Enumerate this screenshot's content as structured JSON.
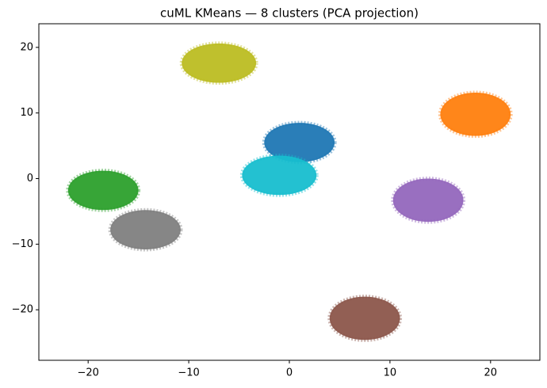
{
  "chart_data": {
    "type": "cluster_scatter",
    "title": "cuML KMeans — 8 clusters (PCA projection)",
    "xlim": [
      -24.9,
      24.9
    ],
    "ylim": [
      -27.7,
      23.6
    ],
    "xticks": [
      {
        "value": -20,
        "label": "−20"
      },
      {
        "value": -10,
        "label": "−10"
      },
      0,
      10,
      20
    ],
    "yticks": [
      {
        "value": -20,
        "label": "−20"
      },
      {
        "value": -10,
        "label": "−10"
      },
      0,
      10,
      20
    ],
    "clusters": [
      {
        "color": "#1f77b4",
        "x": 1,
        "y": 5.5,
        "x_radius": 3.5,
        "y_radius": 3
      },
      {
        "color": "#ff7f0e",
        "x": 18.5,
        "y": 9.8,
        "x_radius": 3.5,
        "y_radius": 3.3
      },
      {
        "color": "#2ca02c",
        "x": -18.5,
        "y": -1.8,
        "x_radius": 3.5,
        "y_radius": 3
      },
      {
        "color": "#9467bd",
        "x": 13.8,
        "y": -3.3,
        "x_radius": 3.5,
        "y_radius": 3.3
      },
      {
        "color": "#8c564b",
        "x": 7.5,
        "y": -21.3,
        "x_radius": 3.5,
        "y_radius": 3.3
      },
      {
        "color": "#7f7f7f",
        "x": -14.3,
        "y": -7.8,
        "x_radius": 3.5,
        "y_radius": 3
      },
      {
        "color": "#bcbd22",
        "x": -7,
        "y": 17.6,
        "x_radius": 3.7,
        "y_radius": 3
      },
      {
        "color": "#17becf",
        "x": -1,
        "y": 0.5,
        "x_radius": 3.7,
        "y_radius": 3
      }
    ]
  }
}
